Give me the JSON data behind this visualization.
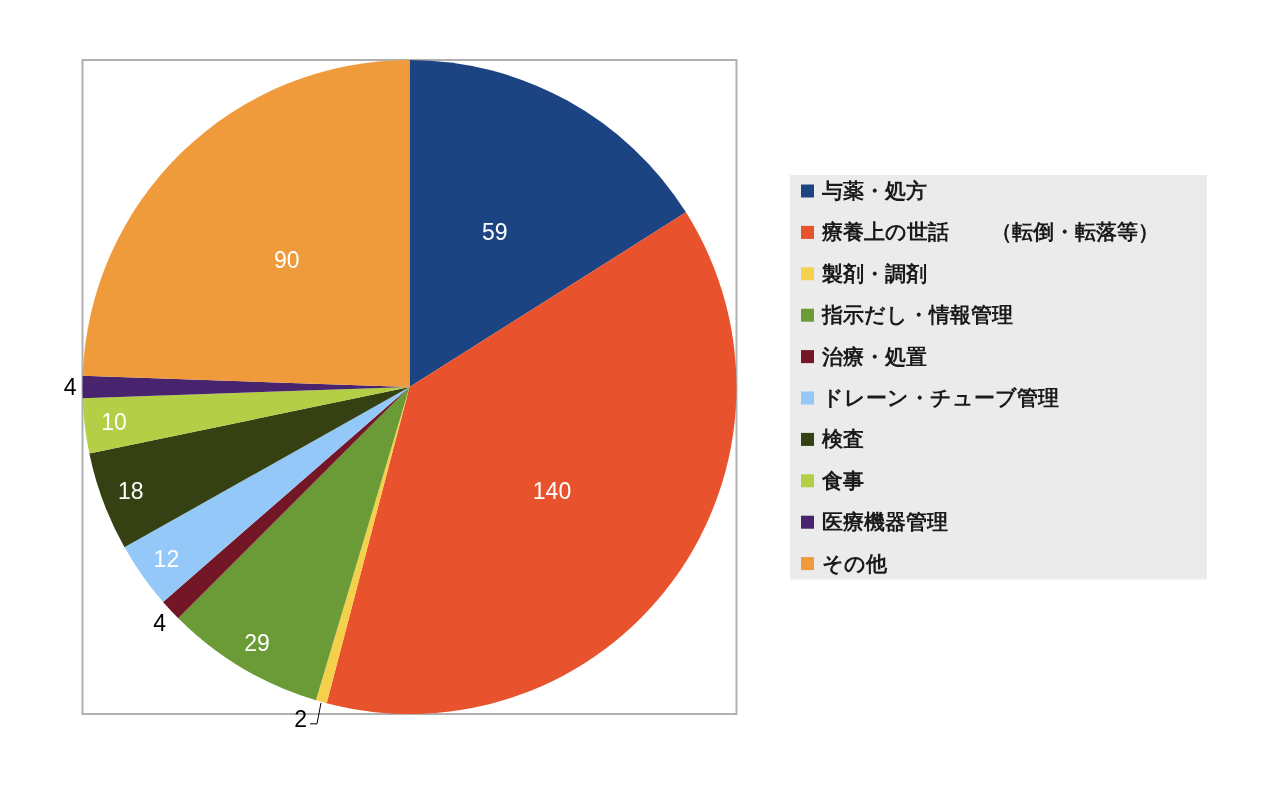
{
  "chart_data": {
    "type": "pie",
    "categories": [
      "与薬・処方",
      "療養上の世話　　（転倒・転落等）",
      "製剤・調剤",
      "指示だし・情報管理",
      "治療・処置",
      "ドレーン・チューブ管理",
      "検査",
      "食事",
      "医療機器管理",
      "その他"
    ],
    "values": [
      59,
      140,
      2,
      29,
      4,
      12,
      18,
      10,
      4,
      90
    ],
    "colors": [
      "#1c4482",
      "#e8522c",
      "#f5d04a",
      "#6a9b37",
      "#731626",
      "#94c8f8",
      "#354113",
      "#b4cf45",
      "#48236e",
      "#ef9b3b"
    ],
    "data_labels": true,
    "legend": "right"
  }
}
